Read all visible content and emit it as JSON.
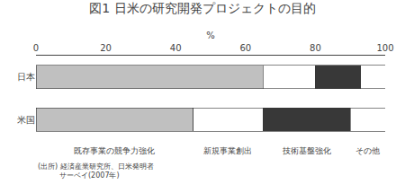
{
  "chart_data": {
    "type": "bar",
    "orientation": "horizontal",
    "stacked": true,
    "title": "図1 日米の研究開発プロジェクトの目的",
    "categories": [
      "日本",
      "米国"
    ],
    "series": [
      {
        "color": "#c0c0c0",
        "values": [
          65,
          45
        ]
      },
      {
        "color": "#ffffff",
        "values": [
          15,
          20
        ]
      },
      {
        "color": "#383838",
        "values": [
          13,
          25
        ]
      },
      {
        "color": "#ffffff",
        "values": [
          7,
          10
        ]
      }
    ],
    "xlim": [
      0,
      100
    ],
    "xticks": [
      0,
      20,
      40,
      60,
      80,
      100
    ],
    "x_label": "%",
    "grid": false,
    "annotations": [
      "既存事業の競争力強化",
      "新規事業創出",
      "技術基盤強化",
      "その他"
    ],
    "source": [
      "(出所) 経済産業研究所、日米発明者",
      "　　　サーベイ(2007年)"
    ]
  }
}
